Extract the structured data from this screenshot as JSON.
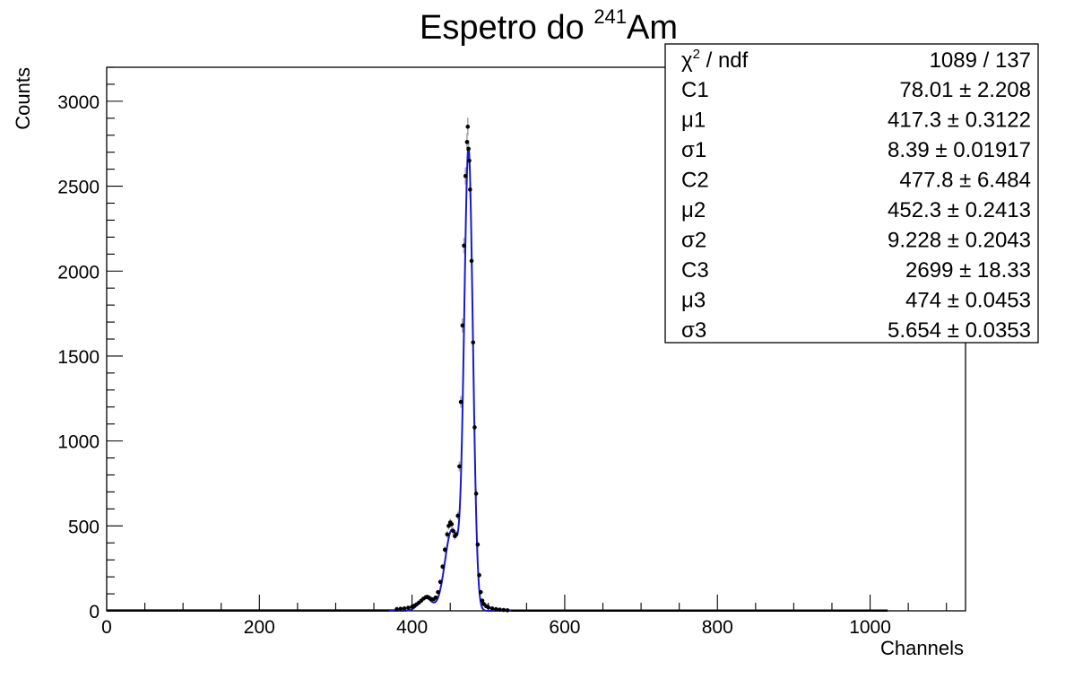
{
  "chart_data": {
    "type": "scatter",
    "title_main": "Espetro do ",
    "title_sup": "241",
    "title_tail": "Am",
    "xlabel": "Channels",
    "ylabel": "Counts",
    "xlim": [
      0,
      1125
    ],
    "ylim": [
      0,
      3200
    ],
    "x_ticks": [
      0,
      200,
      400,
      600,
      800,
      1000
    ],
    "y_ticks": [
      0,
      500,
      1000,
      1500,
      2000,
      2500,
      3000
    ],
    "x_tick_labels": [
      "0",
      "200",
      "400",
      "600",
      "800",
      "1000"
    ],
    "y_tick_labels": [
      "0",
      "500",
      "1000",
      "1500",
      "2000",
      "2500",
      "3000"
    ],
    "data_range": [
      0,
      1023
    ],
    "points": [
      [
        380,
        10
      ],
      [
        385,
        12
      ],
      [
        390,
        14
      ],
      [
        395,
        18
      ],
      [
        400,
        24
      ],
      [
        403,
        30
      ],
      [
        406,
        38
      ],
      [
        409,
        48
      ],
      [
        412,
        60
      ],
      [
        415,
        72
      ],
      [
        418,
        80
      ],
      [
        420,
        82
      ],
      [
        422,
        78
      ],
      [
        425,
        70
      ],
      [
        428,
        68
      ],
      [
        431,
        78
      ],
      [
        434,
        110
      ],
      [
        437,
        170
      ],
      [
        440,
        260
      ],
      [
        443,
        360
      ],
      [
        446,
        450
      ],
      [
        448,
        500
      ],
      [
        450,
        520
      ],
      [
        452,
        510
      ],
      [
        454,
        470
      ],
      [
        456,
        440
      ],
      [
        458,
        450
      ],
      [
        460,
        560
      ],
      [
        462,
        850
      ],
      [
        464,
        1230
      ],
      [
        466,
        1680
      ],
      [
        468,
        2150
      ],
      [
        470,
        2560
      ],
      [
        472,
        2760
      ],
      [
        473,
        2850
      ],
      [
        474,
        2720
      ],
      [
        475,
        2650
      ],
      [
        476,
        2480
      ],
      [
        478,
        2060
      ],
      [
        480,
        1580
      ],
      [
        482,
        1080
      ],
      [
        484,
        690
      ],
      [
        486,
        390
      ],
      [
        488,
        210
      ],
      [
        490,
        110
      ],
      [
        492,
        60
      ],
      [
        494,
        40
      ],
      [
        497,
        28
      ],
      [
        500,
        20
      ],
      [
        505,
        14
      ],
      [
        510,
        10
      ],
      [
        515,
        7
      ],
      [
        520,
        5
      ],
      [
        525,
        3
      ]
    ],
    "fit_params": {
      "C1": 78.01,
      "mu1": 417.3,
      "sigma1": 8.39,
      "C2": 477.8,
      "mu2": 452.3,
      "sigma2": 9.228,
      "C3": 2699,
      "mu3": 474,
      "sigma3": 5.654
    },
    "fit_color": "#1a1acc",
    "marker_color": "#000000",
    "error_color": "#aaaaaa",
    "legend_position": "top-right"
  },
  "stats": {
    "chi_label_symbol": "χ",
    "chi_label_sup": "2",
    "chi_label_tail": " / ndf",
    "chi_value": "1089 / 137",
    "rows": [
      {
        "label": "C1",
        "value": "78.01 ± 2.208"
      },
      {
        "label": "μ1",
        "value": "417.3 ± 0.3122"
      },
      {
        "label": "σ1",
        "value": "8.39 ± 0.01917"
      },
      {
        "label": "C2",
        "value": "477.8 ± 6.484"
      },
      {
        "label": "μ2",
        "value": "452.3 ± 0.2413"
      },
      {
        "label": "σ2",
        "value": "9.228 ± 0.2043"
      },
      {
        "label": "C3",
        "value": "2699 ± 18.33"
      },
      {
        "label": "μ3",
        "value": "474 ± 0.0453"
      },
      {
        "label": "σ3",
        "value": "5.654 ± 0.0353"
      }
    ]
  }
}
